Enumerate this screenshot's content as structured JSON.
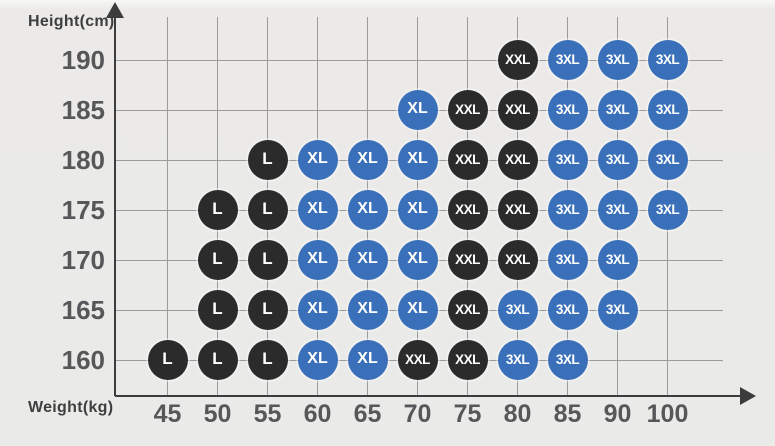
{
  "chart": {
    "y_axis_title": "Height(cm)",
    "x_axis_title": "Weight(kg)",
    "heights": [
      190,
      185,
      180,
      175,
      170,
      165,
      160
    ],
    "weights": [
      45,
      50,
      55,
      60,
      65,
      70,
      75,
      80,
      85,
      90,
      100
    ],
    "colors": {
      "dark": "#2b2b2b",
      "blue": "#3a70ba"
    },
    "size_colors": {
      "L": "dark",
      "XL": "blue",
      "XXL": "dark",
      "3XL": "blue"
    },
    "rows": [
      {
        "height": 190,
        "cells": [
          {
            "w": 80,
            "s": "XXL"
          },
          {
            "w": 85,
            "s": "3XL"
          },
          {
            "w": 90,
            "s": "3XL"
          },
          {
            "w": 100,
            "s": "3XL"
          }
        ]
      },
      {
        "height": 185,
        "cells": [
          {
            "w": 70,
            "s": "XL"
          },
          {
            "w": 75,
            "s": "XXL"
          },
          {
            "w": 80,
            "s": "XXL"
          },
          {
            "w": 85,
            "s": "3XL"
          },
          {
            "w": 90,
            "s": "3XL"
          },
          {
            "w": 100,
            "s": "3XL"
          }
        ]
      },
      {
        "height": 180,
        "cells": [
          {
            "w": 55,
            "s": "L"
          },
          {
            "w": 60,
            "s": "XL"
          },
          {
            "w": 65,
            "s": "XL"
          },
          {
            "w": 70,
            "s": "XL"
          },
          {
            "w": 75,
            "s": "XXL"
          },
          {
            "w": 80,
            "s": "XXL"
          },
          {
            "w": 85,
            "s": "3XL"
          },
          {
            "w": 90,
            "s": "3XL"
          },
          {
            "w": 100,
            "s": "3XL"
          }
        ]
      },
      {
        "height": 175,
        "cells": [
          {
            "w": 50,
            "s": "L"
          },
          {
            "w": 55,
            "s": "L"
          },
          {
            "w": 60,
            "s": "XL"
          },
          {
            "w": 65,
            "s": "XL"
          },
          {
            "w": 70,
            "s": "XL"
          },
          {
            "w": 75,
            "s": "XXL"
          },
          {
            "w": 80,
            "s": "XXL"
          },
          {
            "w": 85,
            "s": "3XL"
          },
          {
            "w": 90,
            "s": "3XL"
          },
          {
            "w": 100,
            "s": "3XL"
          }
        ]
      },
      {
        "height": 170,
        "cells": [
          {
            "w": 50,
            "s": "L"
          },
          {
            "w": 55,
            "s": "L"
          },
          {
            "w": 60,
            "s": "XL"
          },
          {
            "w": 65,
            "s": "XL"
          },
          {
            "w": 70,
            "s": "XL"
          },
          {
            "w": 75,
            "s": "XXL"
          },
          {
            "w": 80,
            "s": "XXL"
          },
          {
            "w": 85,
            "s": "3XL"
          },
          {
            "w": 90,
            "s": "3XL"
          }
        ]
      },
      {
        "height": 165,
        "cells": [
          {
            "w": 50,
            "s": "L"
          },
          {
            "w": 55,
            "s": "L"
          },
          {
            "w": 60,
            "s": "XL"
          },
          {
            "w": 65,
            "s": "XL"
          },
          {
            "w": 70,
            "s": "XL"
          },
          {
            "w": 75,
            "s": "XXL"
          },
          {
            "w": 80,
            "s": "3XL"
          },
          {
            "w": 85,
            "s": "3XL"
          },
          {
            "w": 90,
            "s": "3XL"
          }
        ]
      },
      {
        "height": 160,
        "cells": [
          {
            "w": 45,
            "s": "L"
          },
          {
            "w": 50,
            "s": "L"
          },
          {
            "w": 55,
            "s": "L"
          },
          {
            "w": 60,
            "s": "XL"
          },
          {
            "w": 65,
            "s": "XL"
          },
          {
            "w": 70,
            "s": "XXL"
          },
          {
            "w": 75,
            "s": "XXL"
          },
          {
            "w": 80,
            "s": "3XL"
          },
          {
            "w": 85,
            "s": "3XL"
          }
        ]
      }
    ]
  },
  "chart_data": {
    "type": "scatter",
    "title": "",
    "xlabel": "Weight(kg)",
    "ylabel": "Height(cm)",
    "x_ticks": [
      45,
      50,
      55,
      60,
      65,
      70,
      75,
      80,
      85,
      90,
      100
    ],
    "y_ticks": [
      160,
      165,
      170,
      175,
      180,
      185,
      190
    ],
    "grid": true,
    "legend": false,
    "point_label_style": "size letter inside filled circle",
    "series": [
      {
        "name": "L",
        "color": "#2b2b2b",
        "points": [
          [
            45,
            160
          ],
          [
            50,
            160
          ],
          [
            55,
            160
          ],
          [
            50,
            165
          ],
          [
            55,
            165
          ],
          [
            50,
            170
          ],
          [
            55,
            170
          ],
          [
            50,
            175
          ],
          [
            55,
            175
          ],
          [
            55,
            180
          ]
        ]
      },
      {
        "name": "XL",
        "color": "#3a70ba",
        "points": [
          [
            60,
            160
          ],
          [
            65,
            160
          ],
          [
            60,
            165
          ],
          [
            65,
            165
          ],
          [
            70,
            165
          ],
          [
            60,
            170
          ],
          [
            65,
            170
          ],
          [
            70,
            170
          ],
          [
            60,
            175
          ],
          [
            65,
            175
          ],
          [
            70,
            175
          ],
          [
            60,
            180
          ],
          [
            65,
            180
          ],
          [
            70,
            180
          ],
          [
            70,
            185
          ]
        ]
      },
      {
        "name": "XXL",
        "color": "#2b2b2b",
        "points": [
          [
            70,
            160
          ],
          [
            75,
            160
          ],
          [
            75,
            165
          ],
          [
            75,
            170
          ],
          [
            80,
            170
          ],
          [
            75,
            175
          ],
          [
            80,
            175
          ],
          [
            75,
            180
          ],
          [
            80,
            180
          ],
          [
            75,
            185
          ],
          [
            80,
            185
          ],
          [
            80,
            190
          ]
        ]
      },
      {
        "name": "3XL",
        "color": "#3a70ba",
        "points": [
          [
            80,
            160
          ],
          [
            85,
            160
          ],
          [
            80,
            165
          ],
          [
            85,
            165
          ],
          [
            90,
            165
          ],
          [
            85,
            170
          ],
          [
            90,
            170
          ],
          [
            85,
            175
          ],
          [
            90,
            175
          ],
          [
            100,
            175
          ],
          [
            85,
            180
          ],
          [
            90,
            180
          ],
          [
            100,
            180
          ],
          [
            85,
            185
          ],
          [
            90,
            185
          ],
          [
            100,
            185
          ],
          [
            85,
            190
          ],
          [
            90,
            190
          ],
          [
            100,
            190
          ]
        ]
      }
    ]
  }
}
